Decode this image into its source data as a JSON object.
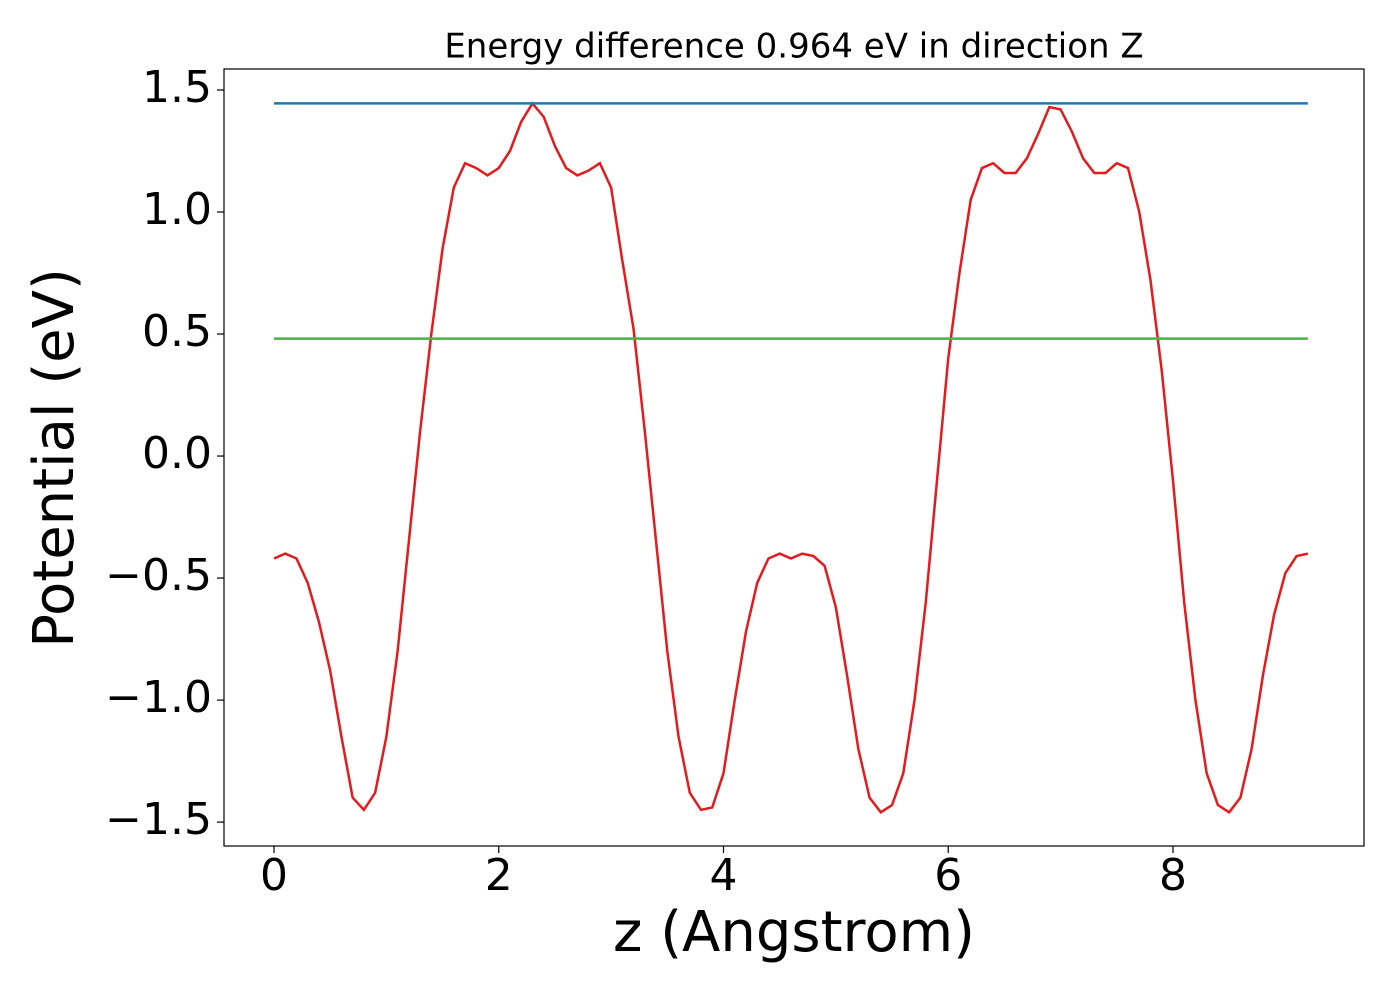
{
  "chart_data": {
    "type": "line",
    "title": "Energy difference 0.964 eV in direction Z",
    "x_label": "z (Angstrom)",
    "y_label": "Potential (eV)",
    "xlim": [
      -0.445,
      9.7
    ],
    "ylim": [
      -1.598,
      1.586
    ],
    "xticks": [
      0,
      2,
      4,
      6,
      8
    ],
    "yticks": [
      {
        "value": -1.5,
        "label": "−1.5"
      },
      {
        "value": -1.0,
        "label": "−1.0"
      },
      {
        "value": -0.5,
        "label": "−0.5"
      },
      {
        "value": 0.0,
        "label": "0.0"
      },
      0.5,
      {
        "value": 1.0,
        "label": "1.0"
      },
      1.5
    ],
    "grid": false,
    "series": [
      {
        "color": "#e41a1c",
        "x": [
          0,
          0.1,
          0.2,
          0.3,
          0.4,
          0.5,
          0.6,
          0.7,
          0.8,
          0.9,
          1.0,
          1.1,
          1.2,
          1.3,
          1.4,
          1.5,
          1.6,
          1.7,
          1.8,
          1.9,
          2.0,
          2.1,
          2.2,
          2.3,
          2.4,
          2.5,
          2.6,
          2.7,
          2.8,
          2.9,
          3.0,
          3.1,
          3.2,
          3.3,
          3.4,
          3.5,
          3.6,
          3.7,
          3.8,
          3.9,
          4.0,
          4.1,
          4.2,
          4.3,
          4.4,
          4.5,
          4.6,
          4.7,
          4.8,
          4.9,
          5.0,
          5.1,
          5.2,
          5.3,
          5.4,
          5.5,
          5.6,
          5.7,
          5.8,
          5.9,
          6.0,
          6.1,
          6.2,
          6.3,
          6.4,
          6.5,
          6.6,
          6.7,
          6.8,
          6.9,
          7.0,
          7.1,
          7.2,
          7.3,
          7.4,
          7.5,
          7.6,
          7.7,
          7.8,
          7.9,
          8.0,
          8.1,
          8.2,
          8.3,
          8.4,
          8.5,
          8.6,
          8.7,
          8.8,
          8.9,
          9.0,
          9.1,
          9.2
        ],
        "values": [
          -0.42,
          -0.4,
          -0.42,
          -0.52,
          -0.68,
          -0.88,
          -1.15,
          -1.4,
          -1.45,
          -1.38,
          -1.15,
          -0.8,
          -0.35,
          0.1,
          0.5,
          0.85,
          1.1,
          1.2,
          1.18,
          1.15,
          1.18,
          1.25,
          1.37,
          1.445,
          1.39,
          1.27,
          1.18,
          1.15,
          1.17,
          1.2,
          1.1,
          0.8,
          0.52,
          0.1,
          -0.35,
          -0.8,
          -1.15,
          -1.38,
          -1.45,
          -1.44,
          -1.3,
          -1.0,
          -0.72,
          -0.52,
          -0.42,
          -0.4,
          -0.42,
          -0.4,
          -0.41,
          -0.45,
          -0.62,
          -0.9,
          -1.2,
          -1.4,
          -1.46,
          -1.43,
          -1.3,
          -1.0,
          -0.6,
          -0.1,
          0.4,
          0.75,
          1.05,
          1.18,
          1.2,
          1.16,
          1.16,
          1.22,
          1.32,
          1.43,
          1.42,
          1.33,
          1.22,
          1.16,
          1.16,
          1.2,
          1.18,
          1.0,
          0.72,
          0.35,
          -0.1,
          -0.6,
          -1.0,
          -1.3,
          -1.43,
          -1.46,
          -1.4,
          -1.2,
          -0.9,
          -0.65,
          -0.48,
          -0.41,
          -0.4
        ]
      },
      {
        "color": "#1f77b4",
        "x": [
          0,
          9.2
        ],
        "values": [
          1.445,
          1.445
        ]
      },
      {
        "color": "#4daf4a",
        "x": [
          0,
          9.2
        ],
        "values": [
          0.481,
          0.481
        ]
      }
    ]
  }
}
